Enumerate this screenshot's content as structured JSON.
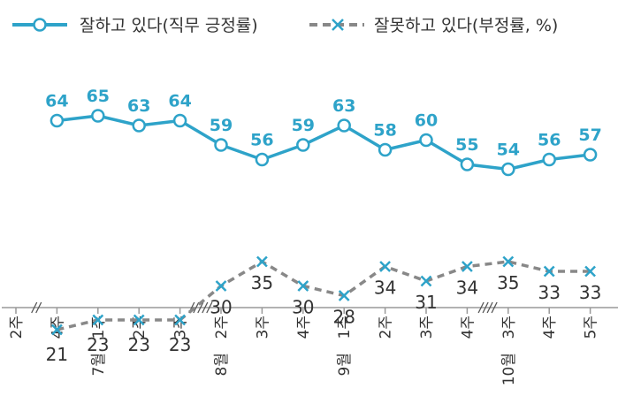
{
  "chart_data": {
    "type": "line",
    "legend": [
      {
        "name": "잘하고 있다(직무 긍정률)",
        "color": "#2ea3c9",
        "style": "solid",
        "marker": "circle"
      },
      {
        "name": "잘못하고 있다(부정률, %)",
        "color": "#888888",
        "style": "dashed",
        "marker": "x"
      }
    ],
    "categories": [
      {
        "week": "2주",
        "month": ""
      },
      {
        "week": "4주",
        "month": ""
      },
      {
        "week": "1주",
        "month": "7월"
      },
      {
        "week": "2주",
        "month": ""
      },
      {
        "week": "3주",
        "month": ""
      },
      {
        "week": "2주",
        "month": "8월"
      },
      {
        "week": "3주",
        "month": ""
      },
      {
        "week": "4주",
        "month": ""
      },
      {
        "week": "1주",
        "month": "9월"
      },
      {
        "week": "2주",
        "month": ""
      },
      {
        "week": "3주",
        "month": ""
      },
      {
        "week": "4주",
        "month": ""
      },
      {
        "week": "3주",
        "month": "10월"
      },
      {
        "week": "4주",
        "month": ""
      },
      {
        "week": "5주",
        "month": ""
      }
    ],
    "series": [
      {
        "name": "잘하고 있다(직무 긍정률)",
        "values": [
          null,
          64,
          65,
          63,
          64,
          59,
          56,
          59,
          63,
          58,
          60,
          55,
          54,
          56,
          57
        ]
      },
      {
        "name": "잘못하고 있다(부정률, %)",
        "values": [
          null,
          21,
          23,
          23,
          23,
          30,
          35,
          30,
          28,
          34,
          31,
          34,
          35,
          33,
          33
        ]
      }
    ],
    "axis_breaks": [
      {
        "label": "//",
        "between": [
          0,
          1
        ]
      },
      {
        "label": "/////",
        "between": [
          4,
          5
        ]
      },
      {
        "label": "////",
        "between": [
          11,
          12
        ]
      }
    ]
  },
  "colors": {
    "approve": "#2ea3c9",
    "disapprove": "#888888",
    "marker_x": "#2ea3c9",
    "axis": "#999999"
  }
}
